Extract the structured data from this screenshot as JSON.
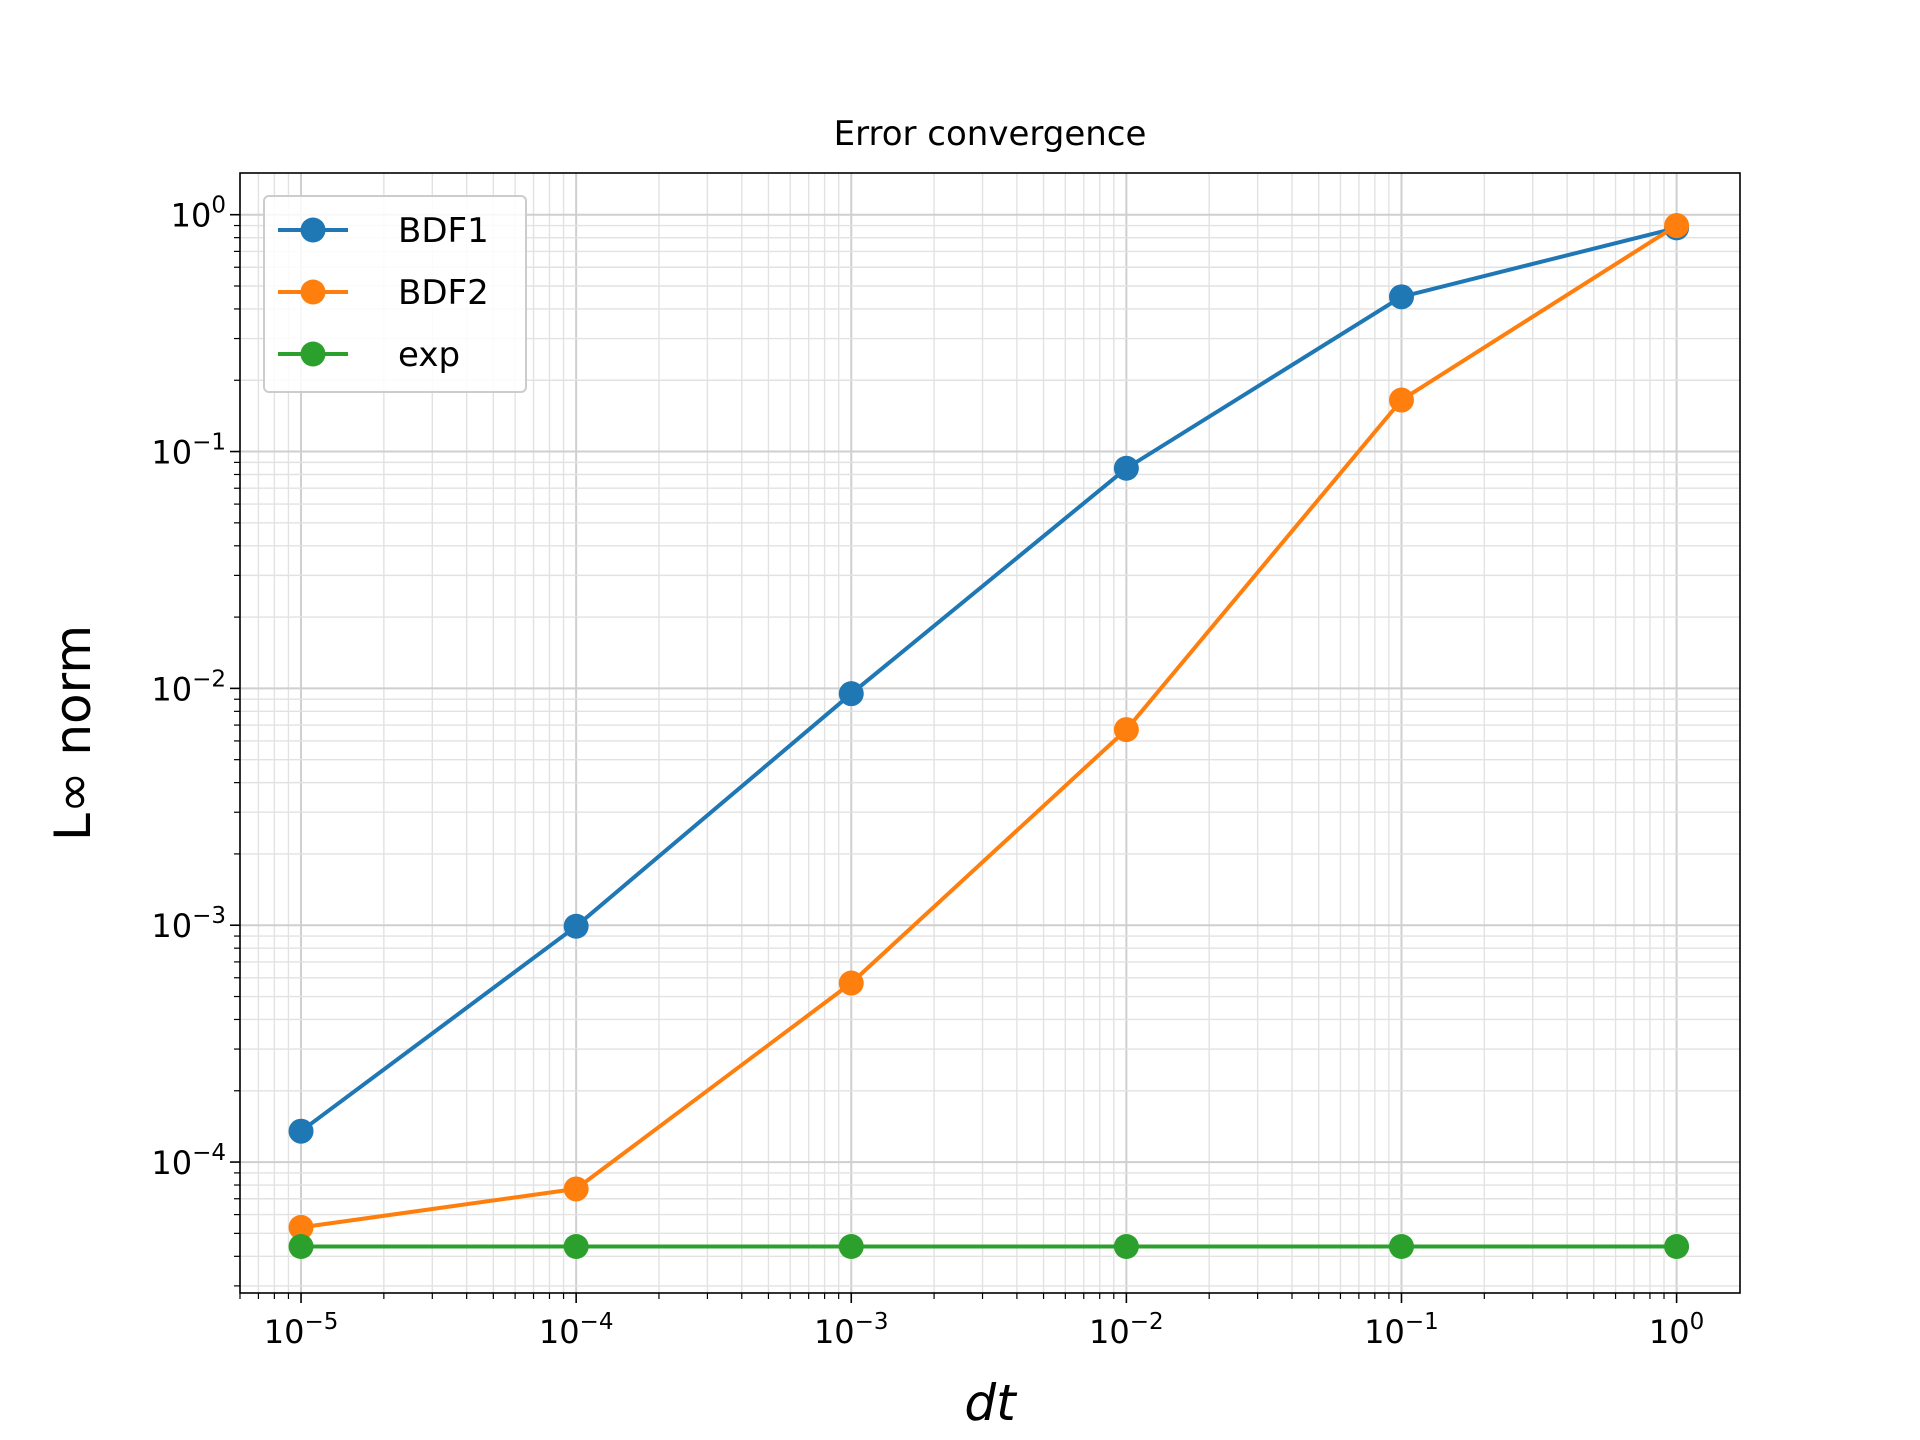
{
  "chart_data": {
    "type": "line",
    "title": "Error convergence",
    "xlabel": "dt",
    "ylabel": "L∞ norm",
    "xscale": "log",
    "yscale": "log",
    "xlim": [
      6e-06,
      1.7
    ],
    "ylim": [
      2.8e-05,
      1.5
    ],
    "x": [
      1e-05,
      0.0001,
      0.001,
      0.01,
      0.1,
      1
    ],
    "x_ticks": [
      {
        "value": 1e-05,
        "base": "10",
        "exp": "−5"
      },
      {
        "value": 0.0001,
        "base": "10",
        "exp": "−4"
      },
      {
        "value": 0.001,
        "base": "10",
        "exp": "−3"
      },
      {
        "value": 0.01,
        "base": "10",
        "exp": "−2"
      },
      {
        "value": 0.1,
        "base": "10",
        "exp": "−1"
      },
      {
        "value": 1,
        "base": "10",
        "exp": "0"
      }
    ],
    "y_ticks": [
      {
        "value": 0.0001,
        "base": "10",
        "exp": "−4"
      },
      {
        "value": 0.001,
        "base": "10",
        "exp": "−3"
      },
      {
        "value": 0.01,
        "base": "10",
        "exp": "−2"
      },
      {
        "value": 0.1,
        "base": "10",
        "exp": "−1"
      },
      {
        "value": 1,
        "base": "10",
        "exp": "0"
      }
    ],
    "grid": "major and minor",
    "legend": "upper-left",
    "series": [
      {
        "name": "BDF1",
        "color": "#1f77b4",
        "values": [
          0.000135,
          0.00099,
          0.0095,
          0.085,
          0.45,
          0.88
        ]
      },
      {
        "name": "BDF2",
        "color": "#ff7f0e",
        "values": [
          5.3e-05,
          7.7e-05,
          0.00057,
          0.0067,
          0.165,
          0.9
        ]
      },
      {
        "name": "exp",
        "color": "#2ca02c",
        "values": [
          4.4e-05,
          4.4e-05,
          4.4e-05,
          4.4e-05,
          4.4e-05,
          4.4e-05
        ]
      }
    ]
  }
}
